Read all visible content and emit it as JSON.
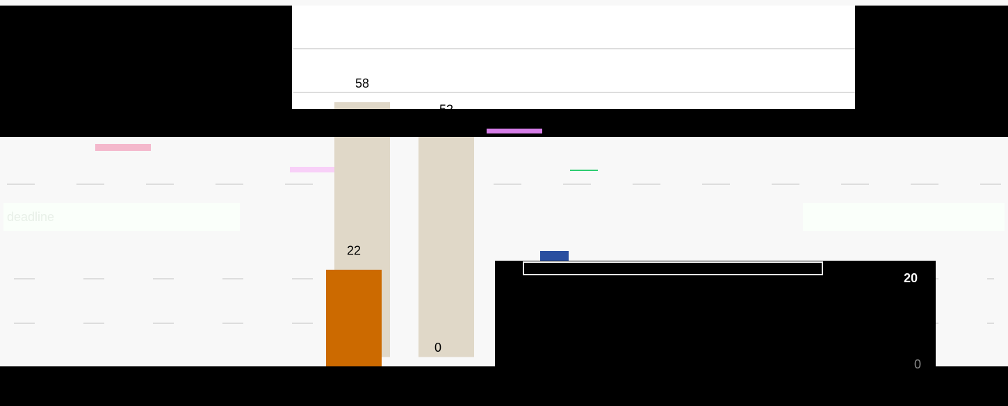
{
  "tab_label": "deadline",
  "top_chart": {
    "values": [
      58,
      52
    ]
  },
  "bottom_chart": {
    "values": [
      22,
      0
    ]
  },
  "side_panel": {
    "value": 20,
    "min": 0
  }
}
